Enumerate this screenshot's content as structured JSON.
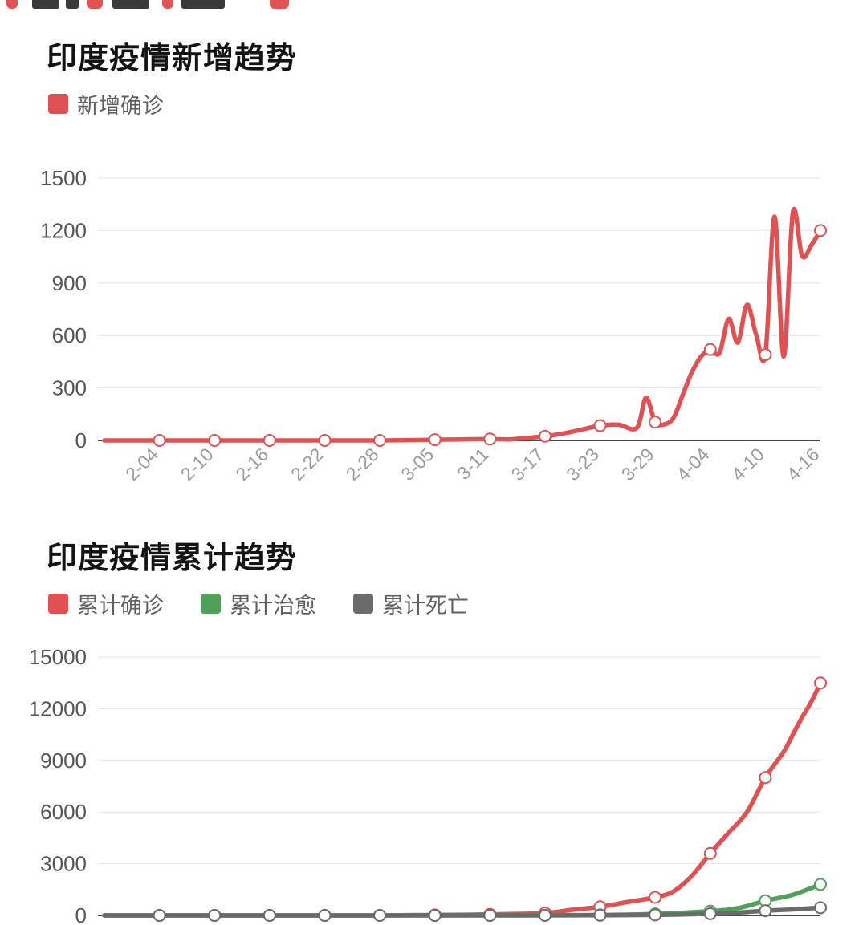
{
  "page": {
    "background": "#ffffff"
  },
  "colors": {
    "confirmed_red": "#df5152",
    "cured_green": "#50a05a",
    "death_gray": "#6b6b6b",
    "grid_line": "#e6e6e6",
    "axis_line": "#4a4a4a",
    "y_label": "#555555",
    "x_label": "#9a9a9a"
  },
  "chart_data": [
    {
      "type": "line",
      "title": "印度疫情新增趋势",
      "legend": [
        {
          "label": "新增确诊",
          "color": "#df5152"
        }
      ],
      "smooth": true,
      "grid": true,
      "legend_position": "top-left",
      "x_domain": [
        -6,
        72
      ],
      "ylim": [
        0,
        1500
      ],
      "y_ticks": [
        0,
        300,
        600,
        900,
        1200,
        1500
      ],
      "x_axis": {
        "show_labels": true,
        "tick_offsets": [
          0,
          6,
          12,
          18,
          24,
          30,
          36,
          42,
          48,
          54,
          60,
          66,
          72
        ],
        "tick_labels": [
          "2-04",
          "2-10",
          "2-16",
          "2-22",
          "2-28",
          "3-05",
          "3-11",
          "3-17",
          "3-23",
          "3-29",
          "4-04",
          "4-10",
          "4-16"
        ]
      },
      "marker_offsets": [
        0,
        6,
        12,
        18,
        24,
        30,
        36,
        42,
        48,
        54,
        60,
        66,
        72
      ],
      "marker_fill": "#ffffff",
      "series": [
        {
          "name": "新增确诊",
          "color": "#df5152",
          "points": [
            [
              -6,
              0
            ],
            [
              -3,
              0
            ],
            [
              0,
              0
            ],
            [
              3,
              0
            ],
            [
              6,
              0
            ],
            [
              9,
              0
            ],
            [
              12,
              0
            ],
            [
              15,
              0
            ],
            [
              18,
              0
            ],
            [
              21,
              0
            ],
            [
              24,
              0
            ],
            [
              26,
              1
            ],
            [
              28,
              2
            ],
            [
              30,
              4
            ],
            [
              33,
              6
            ],
            [
              36,
              8
            ],
            [
              38,
              6
            ],
            [
              40,
              14
            ],
            [
              42,
              24
            ],
            [
              44,
              40
            ],
            [
              46,
              62
            ],
            [
              48,
              85
            ],
            [
              50,
              90
            ],
            [
              52,
              72
            ],
            [
              53,
              245
            ],
            [
              54,
              105
            ],
            [
              55,
              92
            ],
            [
              56,
              130
            ],
            [
              57,
              260
            ],
            [
              58,
              390
            ],
            [
              59,
              480
            ],
            [
              60,
              520
            ],
            [
              61,
              500
            ],
            [
              62,
              695
            ],
            [
              63,
              560
            ],
            [
              64,
              775
            ],
            [
              65,
              605
            ],
            [
              66,
              490
            ],
            [
              67,
              1280
            ],
            [
              68,
              480
            ],
            [
              69,
              1305
            ],
            [
              70,
              1055
            ],
            [
              71,
              1115
            ],
            [
              72,
              1200
            ]
          ]
        }
      ]
    },
    {
      "type": "line",
      "title": "印度疫情累计趋势",
      "legend": [
        {
          "label": "累计确诊",
          "color": "#df5152"
        },
        {
          "label": "累计治愈",
          "color": "#50a05a"
        },
        {
          "label": "累计死亡",
          "color": "#6b6b6b"
        }
      ],
      "smooth": true,
      "grid": true,
      "legend_position": "top-left",
      "x_domain": [
        -6,
        72
      ],
      "ylim": [
        0,
        15000
      ],
      "y_ticks": [
        0,
        3000,
        6000,
        9000,
        12000,
        15000
      ],
      "x_axis": {
        "show_labels": false,
        "tick_offsets": [
          0,
          6,
          12,
          18,
          24,
          30,
          36,
          42,
          48,
          54,
          60,
          66,
          72
        ],
        "tick_labels": []
      },
      "marker_offsets": [
        0,
        6,
        12,
        18,
        24,
        30,
        36,
        42,
        48,
        54,
        60,
        66,
        72
      ],
      "marker_fill": "#ffffff",
      "series": [
        {
          "name": "累计确诊",
          "color": "#df5152",
          "points": [
            [
              -6,
              1
            ],
            [
              0,
              3
            ],
            [
              6,
              3
            ],
            [
              12,
              3
            ],
            [
              18,
              3
            ],
            [
              24,
              3
            ],
            [
              30,
              28
            ],
            [
              36,
              62
            ],
            [
              42,
              142
            ],
            [
              45,
              330
            ],
            [
              48,
              500
            ],
            [
              51,
              780
            ],
            [
              54,
              1050
            ],
            [
              56,
              1400
            ],
            [
              58,
              2300
            ],
            [
              60,
              3600
            ],
            [
              62,
              4800
            ],
            [
              64,
              6000
            ],
            [
              66,
              8000
            ],
            [
              68,
              9500
            ],
            [
              69,
              10500
            ],
            [
              70,
              11500
            ],
            [
              71,
              12400
            ],
            [
              72,
              13500
            ]
          ]
        },
        {
          "name": "累计治愈",
          "color": "#50a05a",
          "points": [
            [
              -6,
              0
            ],
            [
              0,
              0
            ],
            [
              6,
              0
            ],
            [
              12,
              0
            ],
            [
              18,
              0
            ],
            [
              24,
              0
            ],
            [
              30,
              3
            ],
            [
              36,
              4
            ],
            [
              42,
              14
            ],
            [
              48,
              27
            ],
            [
              54,
              85
            ],
            [
              60,
              250
            ],
            [
              63,
              420
            ],
            [
              66,
              850
            ],
            [
              69,
              1200
            ],
            [
              72,
              1800
            ]
          ]
        },
        {
          "name": "累计死亡",
          "color": "#6b6b6b",
          "points": [
            [
              -6,
              0
            ],
            [
              0,
              0
            ],
            [
              6,
              0
            ],
            [
              12,
              0
            ],
            [
              18,
              0
            ],
            [
              24,
              0
            ],
            [
              30,
              1
            ],
            [
              36,
              1
            ],
            [
              42,
              3
            ],
            [
              48,
              10
            ],
            [
              54,
              27
            ],
            [
              60,
              99
            ],
            [
              63,
              160
            ],
            [
              66,
              273
            ],
            [
              69,
              350
            ],
            [
              72,
              450
            ]
          ]
        }
      ]
    }
  ]
}
